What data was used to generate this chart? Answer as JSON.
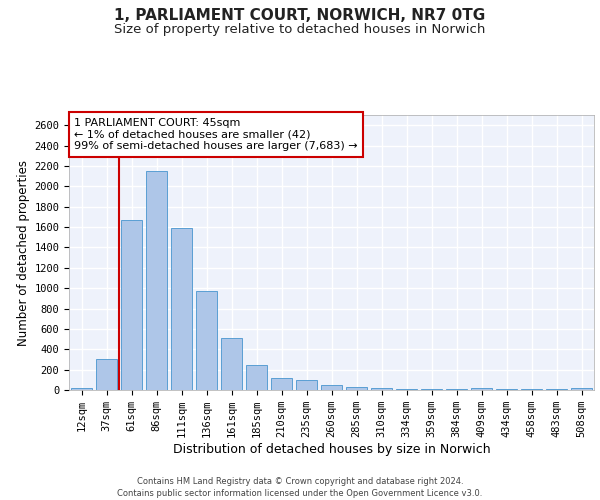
{
  "title_line1": "1, PARLIAMENT COURT, NORWICH, NR7 0TG",
  "title_line2": "Size of property relative to detached houses in Norwich",
  "xlabel": "Distribution of detached houses by size in Norwich",
  "ylabel": "Number of detached properties",
  "categories": [
    "12sqm",
    "37sqm",
    "61sqm",
    "86sqm",
    "111sqm",
    "136sqm",
    "161sqm",
    "185sqm",
    "210sqm",
    "235sqm",
    "260sqm",
    "285sqm",
    "310sqm",
    "334sqm",
    "359sqm",
    "384sqm",
    "409sqm",
    "434sqm",
    "458sqm",
    "483sqm",
    "508sqm"
  ],
  "values": [
    20,
    300,
    1670,
    2150,
    1595,
    970,
    510,
    245,
    120,
    100,
    45,
    30,
    15,
    5,
    10,
    5,
    20,
    5,
    5,
    5,
    20
  ],
  "bar_color": "#aec6e8",
  "bar_edge_color": "#5a9fd4",
  "vline_x": 1.5,
  "vline_color": "#cc0000",
  "annotation_text": "1 PARLIAMENT COURT: 45sqm\n← 1% of detached houses are smaller (42)\n99% of semi-detached houses are larger (7,683) →",
  "annotation_box_color": "white",
  "annotation_box_edge_color": "#cc0000",
  "ylim": [
    0,
    2700
  ],
  "yticks": [
    0,
    200,
    400,
    600,
    800,
    1000,
    1200,
    1400,
    1600,
    1800,
    2000,
    2200,
    2400,
    2600
  ],
  "footer_line1": "Contains HM Land Registry data © Crown copyright and database right 2024.",
  "footer_line2": "Contains public sector information licensed under the Open Government Licence v3.0.",
  "background_color": "#eef2fb",
  "grid_color": "#ffffff",
  "title_fontsize": 11,
  "subtitle_fontsize": 9.5,
  "axis_label_fontsize": 8.5,
  "tick_fontsize": 7.5,
  "annotation_fontsize": 8,
  "footer_fontsize": 6
}
